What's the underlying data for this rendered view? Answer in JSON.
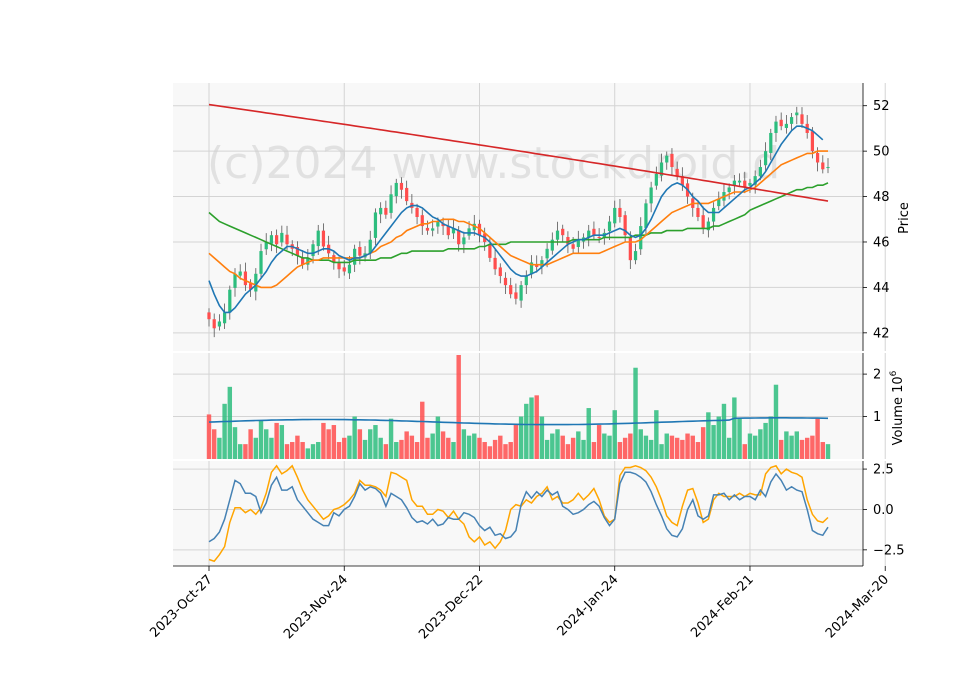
{
  "chart_data": {
    "type": "candlestick",
    "watermark": "(c)2024 www.stockdroid.d",
    "x_tick_labels": [
      "2023-Oct-27",
      "2023-Nov-24",
      "2023-Dec-22",
      "2024-Jan-24",
      "2024-Feb-21",
      "2024-Mar-20"
    ],
    "price_panel": {
      "ylabel": "Price",
      "ylim": [
        41.2,
        53.0
      ],
      "yticks": [
        42,
        44,
        46,
        48,
        50,
        52
      ],
      "colors": {
        "up": "#2dbd7e",
        "down": "#ff4d4d",
        "ma_fast": "#1f77b4",
        "ma_mid": "#ff7f0e",
        "ma_slow": "#2ca02c",
        "ma_long": "#d62728"
      },
      "close": [
        42.6,
        42.2,
        42.5,
        42.9,
        43.9,
        44.6,
        44.7,
        44.1,
        43.9,
        44.6,
        45.6,
        46.0,
        46.3,
        45.9,
        46.4,
        45.9,
        45.7,
        45.4,
        45.0,
        45.3,
        45.9,
        46.5,
        45.8,
        45.5,
        45.1,
        44.8,
        44.7,
        45.0,
        45.7,
        45.4,
        45.5,
        46.1,
        47.3,
        47.5,
        47.2,
        48.1,
        48.6,
        48.3,
        47.8,
        47.5,
        47.1,
        46.7,
        46.5,
        46.6,
        46.9,
        46.7,
        46.3,
        46.6,
        45.9,
        46.2,
        46.6,
        46.8,
        46.3,
        46.0,
        45.3,
        44.8,
        44.5,
        44.1,
        43.7,
        43.5,
        44.1,
        44.5,
        45.1,
        44.9,
        45.2,
        45.7,
        46.1,
        46.5,
        46.3,
        45.9,
        45.7,
        46.1,
        46.2,
        46.5,
        46.3,
        46.2,
        46.4,
        46.9,
        47.5,
        47.1,
        46.3,
        45.2,
        45.6,
        46.7,
        47.7,
        48.4,
        49.0,
        49.5,
        49.8,
        49.3,
        48.9,
        48.5,
        48.0,
        47.5,
        47.1,
        46.6,
        46.9,
        47.5,
        47.9,
        48.2,
        48.4,
        48.7,
        48.7,
        48.4,
        48.6,
        48.9,
        49.3,
        50.0,
        50.8,
        51.3,
        51.1,
        51.2,
        51.5,
        51.7,
        51.2,
        50.8,
        50.0,
        49.5,
        49.2,
        49.3
      ],
      "ma_fast": [
        44.3,
        43.7,
        43.2,
        42.9,
        42.9,
        43.1,
        43.4,
        43.7,
        43.9,
        44.1,
        44.4,
        44.7,
        45.1,
        45.4,
        45.6,
        45.8,
        45.8,
        45.7,
        45.6,
        45.5,
        45.5,
        45.6,
        45.7,
        45.7,
        45.6,
        45.4,
        45.3,
        45.2,
        45.3,
        45.3,
        45.4,
        45.5,
        45.8,
        46.1,
        46.4,
        46.7,
        47.0,
        47.3,
        47.5,
        47.6,
        47.6,
        47.5,
        47.3,
        47.1,
        47.0,
        46.8,
        46.7,
        46.6,
        46.5,
        46.4,
        46.4,
        46.4,
        46.3,
        46.2,
        46.0,
        45.7,
        45.4,
        45.1,
        44.8,
        44.6,
        44.5,
        44.5,
        44.6,
        44.7,
        44.9,
        45.1,
        45.3,
        45.5,
        45.7,
        45.9,
        46.0,
        46.1,
        46.1,
        46.2,
        46.3,
        46.3,
        46.3,
        46.4,
        46.5,
        46.6,
        46.5,
        46.3,
        46.2,
        46.3,
        46.6,
        47.0,
        47.5,
        48.0,
        48.3,
        48.5,
        48.6,
        48.5,
        48.3,
        48.0,
        47.8,
        47.5,
        47.3,
        47.3,
        47.3,
        47.5,
        47.7,
        47.9,
        48.1,
        48.3,
        48.4,
        48.6,
        48.8,
        49.1,
        49.5,
        49.9,
        50.3,
        50.6,
        50.9,
        51.1,
        51.1,
        51.0,
        50.9,
        50.7,
        50.5
      ],
      "ma_mid": [
        45.5,
        45.3,
        45.1,
        44.9,
        44.7,
        44.6,
        44.4,
        44.3,
        44.2,
        44.1,
        44.0,
        44.0,
        44.0,
        44.1,
        44.3,
        44.5,
        44.7,
        44.9,
        45.0,
        45.1,
        45.2,
        45.2,
        45.3,
        45.3,
        45.3,
        45.3,
        45.3,
        45.3,
        45.3,
        45.3,
        45.4,
        45.5,
        45.6,
        45.8,
        45.9,
        46.0,
        46.2,
        46.3,
        46.5,
        46.6,
        46.7,
        46.8,
        46.8,
        46.9,
        46.9,
        47.0,
        47.0,
        47.0,
        46.9,
        46.9,
        46.8,
        46.7,
        46.6,
        46.4,
        46.2,
        46.0,
        45.8,
        45.6,
        45.4,
        45.3,
        45.2,
        45.1,
        45.0,
        45.0,
        45.0,
        45.0,
        45.1,
        45.2,
        45.3,
        45.4,
        45.5,
        45.5,
        45.5,
        45.5,
        45.5,
        45.5,
        45.6,
        45.7,
        45.8,
        45.9,
        46.0,
        46.0,
        46.0,
        46.1,
        46.3,
        46.5,
        46.7,
        46.9,
        47.1,
        47.3,
        47.4,
        47.5,
        47.6,
        47.7,
        47.7,
        47.7,
        47.7,
        47.8,
        47.9,
        48.0,
        48.1,
        48.2,
        48.2,
        48.2,
        48.3,
        48.4,
        48.6,
        48.8,
        49.0,
        49.2,
        49.4,
        49.5,
        49.6,
        49.7,
        49.8,
        49.9,
        49.9,
        50.0,
        50.0,
        50.0
      ],
      "ma_slow": [
        47.3,
        47.1,
        46.9,
        46.8,
        46.7,
        46.6,
        46.5,
        46.4,
        46.3,
        46.2,
        46.1,
        46.0,
        45.9,
        45.8,
        45.7,
        45.6,
        45.5,
        45.4,
        45.3,
        45.3,
        45.2,
        45.2,
        45.2,
        45.2,
        45.1,
        45.1,
        45.1,
        45.1,
        45.2,
        45.2,
        45.2,
        45.2,
        45.2,
        45.3,
        45.3,
        45.3,
        45.4,
        45.5,
        45.5,
        45.6,
        45.6,
        45.6,
        45.6,
        45.6,
        45.6,
        45.6,
        45.7,
        45.7,
        45.7,
        45.7,
        45.7,
        45.7,
        45.8,
        45.8,
        45.9,
        45.9,
        45.9,
        45.9,
        46.0,
        46.0,
        46.0,
        46.0,
        46.0,
        46.0,
        46.0,
        46.0,
        46.0,
        46.0,
        46.0,
        46.0,
        46.1,
        46.1,
        46.1,
        46.1,
        46.1,
        46.1,
        46.2,
        46.2,
        46.2,
        46.2,
        46.2,
        46.2,
        46.3,
        46.3,
        46.3,
        46.4,
        46.4,
        46.4,
        46.5,
        46.5,
        46.5,
        46.5,
        46.6,
        46.6,
        46.6,
        46.6,
        46.6,
        46.7,
        46.7,
        46.8,
        46.9,
        47.0,
        47.1,
        47.2,
        47.4,
        47.5,
        47.6,
        47.7,
        47.8,
        47.9,
        48.0,
        48.1,
        48.2,
        48.3,
        48.3,
        48.4,
        48.4,
        48.5,
        48.5,
        48.6
      ],
      "ma_long_start": 52.05,
      "ma_long_end": 47.8
    },
    "volume_panel": {
      "ylabel": "Volume  10",
      "ylabel_exp": "6",
      "ylim": [
        0.0,
        2.45
      ],
      "yticks": [
        1,
        2
      ],
      "avg_level": 0.87,
      "volumes": [
        1.05,
        0.7,
        0.5,
        1.3,
        1.7,
        0.75,
        0.35,
        0.35,
        0.7,
        0.5,
        0.9,
        0.7,
        0.5,
        0.85,
        0.8,
        0.35,
        0.4,
        0.55,
        0.4,
        0.25,
        0.35,
        0.4,
        0.85,
        0.7,
        0.8,
        0.4,
        0.5,
        0.55,
        1.0,
        0.7,
        0.45,
        0.7,
        0.8,
        0.5,
        0.35,
        0.95,
        0.4,
        0.45,
        0.65,
        0.55,
        0.4,
        1.35,
        0.5,
        0.6,
        1.0,
        0.65,
        0.5,
        0.4,
        2.45,
        0.7,
        0.55,
        0.6,
        0.5,
        0.4,
        0.3,
        0.45,
        0.55,
        0.35,
        0.4,
        0.8,
        1.0,
        1.3,
        1.45,
        1.5,
        1.0,
        0.45,
        0.6,
        0.7,
        0.55,
        0.35,
        0.5,
        0.65,
        0.45,
        1.2,
        0.4,
        0.8,
        0.6,
        0.55,
        1.15,
        0.4,
        0.5,
        0.6,
        2.15,
        0.7,
        0.55,
        0.45,
        1.15,
        0.35,
        0.6,
        0.55,
        0.5,
        0.45,
        0.6,
        0.55,
        0.4,
        0.75,
        1.1,
        0.8,
        1.0,
        1.3,
        0.5,
        1.45,
        0.95,
        0.35,
        0.6,
        0.55,
        0.7,
        0.85,
        1.0,
        1.75,
        0.45,
        0.65,
        0.55,
        0.65,
        0.45,
        0.5,
        0.55,
        0.95,
        0.4,
        0.35
      ]
    },
    "oscillator_panel": {
      "ylim": [
        -3.5,
        3.0
      ],
      "yticks": [
        -2.5,
        0.0,
        2.5
      ],
      "colors": {
        "line_a": "#4682b4",
        "line_b": "#ffa500"
      },
      "line_a": [
        -2.0,
        -1.8,
        -1.4,
        -0.6,
        0.6,
        1.8,
        1.6,
        1.0,
        1.0,
        0.8,
        -0.2,
        0.4,
        1.5,
        2.0,
        1.2,
        1.2,
        1.4,
        0.6,
        0.2,
        -0.2,
        -0.6,
        -0.8,
        -1.0,
        -1.0,
        -0.2,
        -0.4,
        0.0,
        0.2,
        0.8,
        1.6,
        1.2,
        1.4,
        1.3,
        1.0,
        0.2,
        1.0,
        0.8,
        0.6,
        0.1,
        -0.5,
        -0.8,
        -0.7,
        -0.9,
        -0.6,
        -1.0,
        -0.9,
        -0.5,
        -0.6,
        -0.6,
        -0.2,
        -0.3,
        -0.5,
        -1.0,
        -1.3,
        -1.1,
        -1.6,
        -1.5,
        -1.8,
        -1.7,
        -1.3,
        0.3,
        1.1,
        0.7,
        1.1,
        0.8,
        1.2,
        0.9,
        1.1,
        0.2,
        0.0,
        -0.3,
        -0.2,
        0.0,
        0.3,
        0.5,
        0.2,
        -0.5,
        -1.0,
        -0.6,
        1.6,
        2.3,
        2.3,
        2.2,
        2.0,
        1.7,
        1.1,
        0.3,
        -0.4,
        -1.2,
        -1.6,
        -1.7,
        -1.2,
        0.0,
        0.6,
        -0.4,
        -0.6,
        -0.4,
        0.9,
        0.9,
        1.0,
        0.6,
        0.9,
        0.6,
        0.8,
        0.8,
        0.6,
        1.2,
        0.8,
        1.7,
        2.2,
        1.8,
        1.2,
        1.4,
        1.2,
        1.1,
        0.0,
        -1.3,
        -1.5,
        -1.6,
        -1.1
      ],
      "line_b": [
        -3.1,
        -3.2,
        -2.8,
        -2.3,
        -0.8,
        0.1,
        0.1,
        -0.2,
        0.0,
        -0.3,
        0.1,
        1.0,
        2.3,
        2.7,
        2.2,
        2.4,
        2.7,
        2.0,
        1.2,
        0.6,
        0.2,
        -0.2,
        -0.6,
        -0.4,
        0.0,
        0.1,
        0.3,
        0.6,
        1.0,
        1.8,
        1.5,
        1.5,
        1.4,
        1.2,
        0.8,
        2.3,
        2.2,
        2.0,
        1.8,
        0.6,
        0.2,
        0.2,
        -0.3,
        -0.3,
        0.0,
        -0.1,
        -0.5,
        -0.1,
        -0.6,
        -0.9,
        -1.7,
        -2.0,
        -1.7,
        -2.2,
        -2.0,
        -2.4,
        -2.0,
        -1.3,
        0.0,
        0.3,
        0.2,
        0.6,
        0.4,
        0.8,
        1.0,
        1.4,
        0.6,
        0.8,
        0.4,
        0.4,
        0.6,
        1.0,
        0.6,
        0.9,
        1.3,
        0.6,
        -0.4,
        -0.8,
        -0.6,
        2.1,
        2.6,
        2.6,
        2.7,
        2.6,
        2.4,
        2.0,
        1.4,
        0.6,
        -0.4,
        -0.8,
        -1.0,
        0.2,
        1.2,
        1.3,
        0.4,
        -0.8,
        -0.6,
        0.6,
        1.0,
        0.8,
        0.8,
        0.8,
        1.0,
        0.8,
        1.0,
        0.9,
        0.9,
        2.2,
        2.6,
        2.7,
        2.2,
        2.5,
        2.3,
        2.2,
        2.0,
        0.6,
        -0.3,
        -0.7,
        -0.8,
        -0.5
      ]
    }
  }
}
